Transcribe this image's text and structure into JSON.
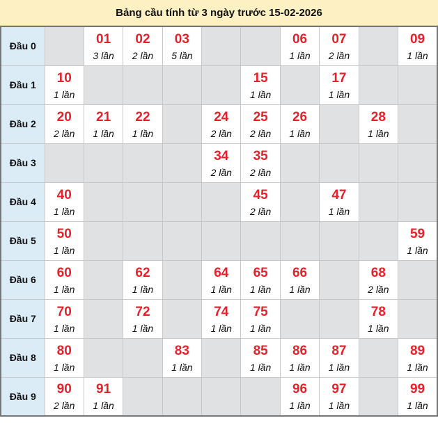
{
  "title": "Bảng cầu tính từ 3 ngày trước 15-02-2026",
  "count_suffix": "lần",
  "rows": [
    {
      "label": "Đầu 0",
      "cells": [
        null,
        3,
        2,
        5,
        null,
        null,
        1,
        2,
        null,
        1
      ]
    },
    {
      "label": "Đầu 1",
      "cells": [
        1,
        null,
        null,
        null,
        null,
        1,
        null,
        1,
        null,
        null
      ]
    },
    {
      "label": "Đầu 2",
      "cells": [
        2,
        1,
        1,
        null,
        2,
        2,
        1,
        null,
        1,
        null
      ]
    },
    {
      "label": "Đầu 3",
      "cells": [
        null,
        null,
        null,
        null,
        2,
        2,
        null,
        null,
        null,
        null
      ]
    },
    {
      "label": "Đầu 4",
      "cells": [
        1,
        null,
        null,
        null,
        null,
        2,
        null,
        1,
        null,
        null
      ]
    },
    {
      "label": "Đầu 5",
      "cells": [
        1,
        null,
        null,
        null,
        null,
        null,
        null,
        null,
        null,
        1
      ]
    },
    {
      "label": "Đầu 6",
      "cells": [
        1,
        null,
        1,
        null,
        1,
        1,
        1,
        null,
        2,
        null
      ]
    },
    {
      "label": "Đầu 7",
      "cells": [
        1,
        null,
        1,
        null,
        1,
        1,
        null,
        null,
        1,
        null
      ]
    },
    {
      "label": "Đầu 8",
      "cells": [
        1,
        null,
        null,
        1,
        null,
        1,
        1,
        1,
        null,
        1
      ]
    },
    {
      "label": "Đầu 9",
      "cells": [
        2,
        1,
        null,
        null,
        null,
        null,
        1,
        1,
        null,
        1
      ]
    }
  ],
  "colors": {
    "number": "#e8202a",
    "header_bg": "#fdf0c2",
    "label_bg": "#dbecf6",
    "empty_bg": "#e0e1e3"
  }
}
